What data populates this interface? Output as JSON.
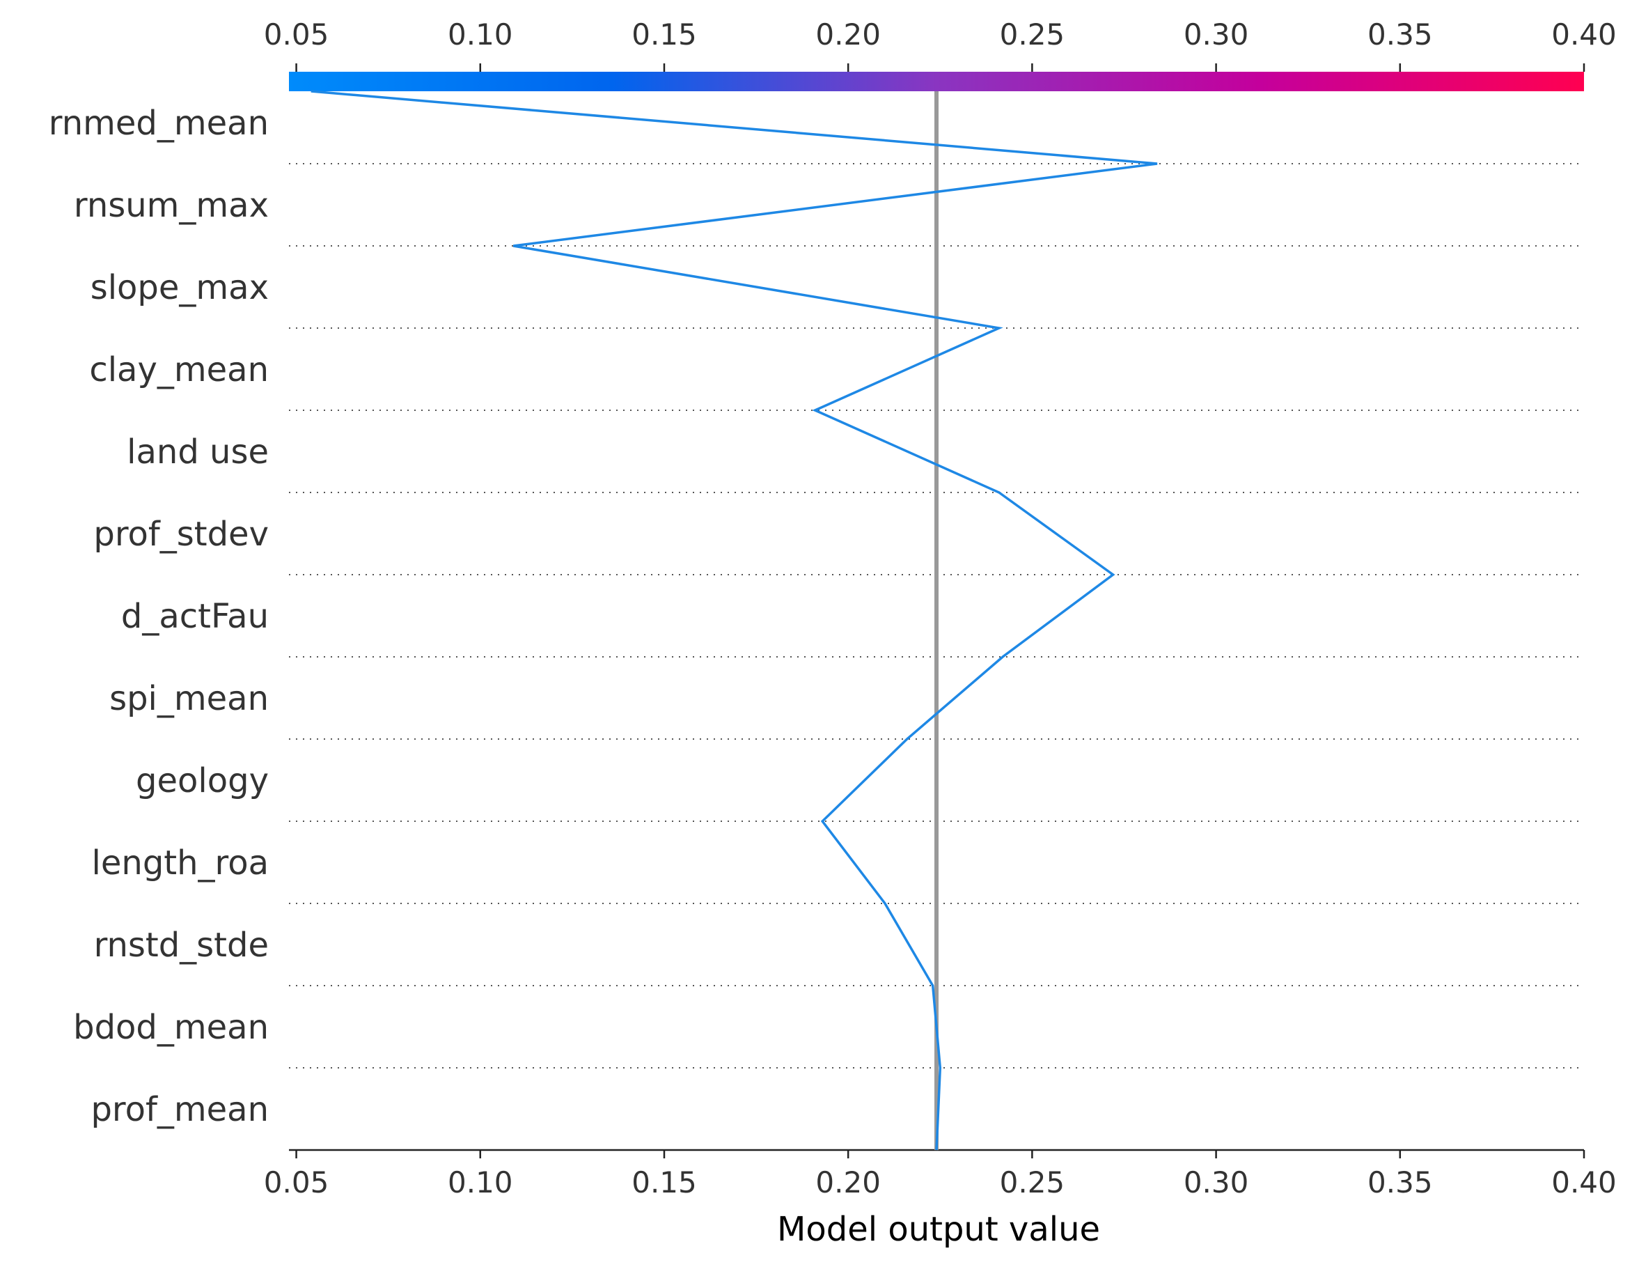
{
  "chart_data": {
    "type": "line",
    "subtype": "shap-decision-plot",
    "xlabel": "Model output value",
    "xlim": [
      0.048,
      0.4
    ],
    "x_ticks": [
      "0.05",
      "0.10",
      "0.15",
      "0.20",
      "0.25",
      "0.30",
      "0.35",
      "0.40"
    ],
    "x_tick_values": [
      0.05,
      0.1,
      0.15,
      0.2,
      0.25,
      0.3,
      0.35,
      0.4
    ],
    "base_value": 0.224,
    "features": [
      "rnmed_mean",
      "rnsum_max",
      "slope_max",
      "clay_mean",
      "land use",
      "prof_stdev",
      "d_actFau",
      "spi_mean",
      "geology",
      "length_roa",
      "rnstd_stde",
      "bdod_mean",
      "prof_mean"
    ],
    "path_x": [
      0.054,
      0.284,
      0.109,
      0.241,
      0.191,
      0.241,
      0.272,
      0.242,
      0.216,
      0.193,
      0.21,
      0.223,
      0.225,
      0.224
    ],
    "grid": "dotted horizontal lines between features",
    "colorbar_colors": [
      "#008bfb",
      "#0065ee",
      "#8a35c1",
      "#c4009c",
      "#ff0051"
    ],
    "line_color": "#1e88e5",
    "base_line_color": "#999999"
  }
}
